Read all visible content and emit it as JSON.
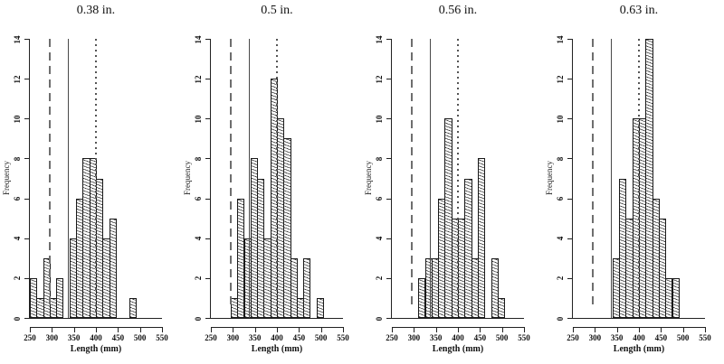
{
  "figure_title": "",
  "colors": {
    "background": "#ffffff",
    "bar_hatch": "#3f3f3f",
    "bar_border": "#1a1a1a",
    "axis": "#222222",
    "text": "#111111",
    "dashed_reference": "#6e6e6e",
    "solid_reference": "#4a4a4a",
    "dotted_reference": "#555555"
  },
  "chart_data": [
    {
      "type": "bar",
      "subtype": "histogram",
      "title": "0.38 in.",
      "xlabel": "Length (mm)",
      "ylabel": "Frequency",
      "xlim": [
        250,
        550
      ],
      "ylim": [
        0,
        14
      ],
      "x_ticks": [
        250,
        300,
        350,
        400,
        450,
        500,
        550
      ],
      "y_ticks": [
        0,
        2,
        4,
        6,
        8,
        10,
        12,
        14
      ],
      "grid": false,
      "legend": null,
      "bin_width": 15,
      "bins": [
        {
          "x0": 250,
          "count": 2
        },
        {
          "x0": 265,
          "count": 1
        },
        {
          "x0": 280,
          "count": 3
        },
        {
          "x0": 295,
          "count": 1
        },
        {
          "x0": 310,
          "count": 2
        },
        {
          "x0": 325,
          "count": 0
        },
        {
          "x0": 340,
          "count": 4
        },
        {
          "x0": 355,
          "count": 6
        },
        {
          "x0": 370,
          "count": 8
        },
        {
          "x0": 385,
          "count": 8
        },
        {
          "x0": 400,
          "count": 7
        },
        {
          "x0": 415,
          "count": 4
        },
        {
          "x0": 430,
          "count": 5
        },
        {
          "x0": 445,
          "count": 0
        },
        {
          "x0": 460,
          "count": 0
        },
        {
          "x0": 475,
          "count": 1
        }
      ],
      "ref_lines": [
        {
          "style": "dashed",
          "x": 295
        },
        {
          "style": "solid",
          "x": 338
        },
        {
          "style": "dotted",
          "x": 400
        }
      ]
    },
    {
      "type": "bar",
      "subtype": "histogram",
      "title": "0.5 in.",
      "xlabel": "Length (mm)",
      "ylabel": "Frequency",
      "xlim": [
        250,
        550
      ],
      "ylim": [
        0,
        14
      ],
      "x_ticks": [
        250,
        300,
        350,
        400,
        450,
        500,
        550
      ],
      "y_ticks": [
        0,
        2,
        4,
        6,
        8,
        10,
        12,
        14
      ],
      "grid": false,
      "legend": null,
      "bin_width": 15,
      "bins": [
        {
          "x0": 295,
          "count": 1
        },
        {
          "x0": 310,
          "count": 6
        },
        {
          "x0": 325,
          "count": 4
        },
        {
          "x0": 340,
          "count": 8
        },
        {
          "x0": 355,
          "count": 7
        },
        {
          "x0": 370,
          "count": 4
        },
        {
          "x0": 385,
          "count": 12
        },
        {
          "x0": 400,
          "count": 10
        },
        {
          "x0": 415,
          "count": 9
        },
        {
          "x0": 430,
          "count": 3
        },
        {
          "x0": 445,
          "count": 1
        },
        {
          "x0": 460,
          "count": 3
        },
        {
          "x0": 475,
          "count": 0
        },
        {
          "x0": 490,
          "count": 1
        }
      ],
      "ref_lines": [
        {
          "style": "dashed",
          "x": 295
        },
        {
          "style": "solid",
          "x": 338
        },
        {
          "style": "dotted",
          "x": 400
        }
      ]
    },
    {
      "type": "bar",
      "subtype": "histogram",
      "title": "0.56 in.",
      "xlabel": "Length (mm)",
      "ylabel": "Frequency",
      "xlim": [
        250,
        550
      ],
      "ylim": [
        0,
        14
      ],
      "x_ticks": [
        250,
        300,
        350,
        400,
        450,
        500,
        550
      ],
      "y_ticks": [
        0,
        2,
        4,
        6,
        8,
        10,
        12,
        14
      ],
      "grid": false,
      "legend": null,
      "bin_width": 15,
      "bins": [
        {
          "x0": 310,
          "count": 2
        },
        {
          "x0": 325,
          "count": 3
        },
        {
          "x0": 340,
          "count": 3
        },
        {
          "x0": 355,
          "count": 6
        },
        {
          "x0": 370,
          "count": 10
        },
        {
          "x0": 385,
          "count": 5
        },
        {
          "x0": 400,
          "count": 5
        },
        {
          "x0": 415,
          "count": 7
        },
        {
          "x0": 430,
          "count": 3
        },
        {
          "x0": 445,
          "count": 8
        },
        {
          "x0": 460,
          "count": 0
        },
        {
          "x0": 475,
          "count": 3
        },
        {
          "x0": 490,
          "count": 1
        }
      ],
      "ref_lines": [
        {
          "style": "dashed",
          "x": 295
        },
        {
          "style": "solid",
          "x": 338
        },
        {
          "style": "dotted",
          "x": 400
        }
      ]
    },
    {
      "type": "bar",
      "subtype": "histogram",
      "title": "0.63 in.",
      "xlabel": "Length (mm)",
      "ylabel": "Frequency",
      "xlim": [
        250,
        550
      ],
      "ylim": [
        0,
        14
      ],
      "x_ticks": [
        250,
        300,
        350,
        400,
        450,
        500,
        550
      ],
      "y_ticks": [
        0,
        2,
        4,
        6,
        8,
        10,
        12,
        14
      ],
      "grid": false,
      "legend": null,
      "bin_width": 15,
      "bins": [
        {
          "x0": 340,
          "count": 3
        },
        {
          "x0": 355,
          "count": 7
        },
        {
          "x0": 370,
          "count": 5
        },
        {
          "x0": 385,
          "count": 10
        },
        {
          "x0": 400,
          "count": 10
        },
        {
          "x0": 415,
          "count": 14
        },
        {
          "x0": 430,
          "count": 6
        },
        {
          "x0": 445,
          "count": 5
        },
        {
          "x0": 460,
          "count": 2
        },
        {
          "x0": 475,
          "count": 2
        }
      ],
      "ref_lines": [
        {
          "style": "dashed",
          "x": 295
        },
        {
          "style": "solid",
          "x": 338
        },
        {
          "style": "dotted",
          "x": 400
        }
      ]
    }
  ]
}
